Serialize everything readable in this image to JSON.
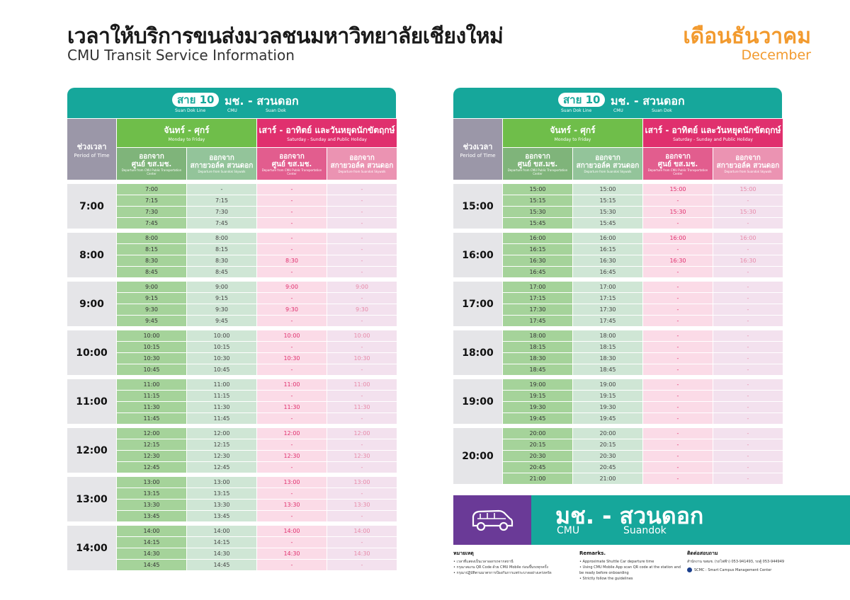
{
  "header": {
    "title": "เวลาให้บริการขนส่งมวลชนมหาวิทยาลัยเชียงใหม่",
    "subtitle": "CMU Transit Service Information",
    "month_th": "เดือนธันวาคม",
    "month_en": "December"
  },
  "route": {
    "line_label": "สาย 10",
    "line_sub": "Suan Dok Line",
    "name": "มช. - สวนดอก",
    "sub_cmu": "CMU",
    "sub_suandok": "Suan Dok"
  },
  "table_header": {
    "period_th": "ช่วงเวลา",
    "period_en": "Period of Time",
    "weekday_th": "จันทร์ - ศุกร์",
    "weekday_en": "Monday to Friday",
    "weekend_th": "เสาร์ - อาทิตย์ และวันหยุดนักขัตฤกษ์",
    "weekend_en": "Saturday - Sunday and Public Holiday",
    "dep_center_th1": "ออกจาก",
    "dep_center_th2": "ศูนย์ ขส.มช.",
    "dep_center_en": "Departure from CMU Public Transportation Center",
    "dep_skywalk_th1": "ออกจาก",
    "dep_skywalk_th2": "สกายวอล์ค สวนดอก",
    "dep_skywalk_en": "Departure from Suandok Skywalk"
  },
  "schedule_left": [
    {
      "hour": "7:00",
      "rows": [
        [
          "7:00",
          "-",
          "-",
          "-"
        ],
        [
          "7:15",
          "7:15",
          "-",
          "-"
        ],
        [
          "7:30",
          "7:30",
          "-",
          "-"
        ],
        [
          "7:45",
          "7:45",
          "-",
          "-"
        ]
      ]
    },
    {
      "hour": "8:00",
      "rows": [
        [
          "8:00",
          "8:00",
          "-",
          "-"
        ],
        [
          "8:15",
          "8:15",
          "-",
          "-"
        ],
        [
          "8:30",
          "8:30",
          "8:30",
          "-"
        ],
        [
          "8:45",
          "8:45",
          "-",
          "-"
        ]
      ]
    },
    {
      "hour": "9:00",
      "rows": [
        [
          "9:00",
          "9:00",
          "9:00",
          "9:00"
        ],
        [
          "9:15",
          "9:15",
          "-",
          "-"
        ],
        [
          "9:30",
          "9:30",
          "9:30",
          "9:30"
        ],
        [
          "9:45",
          "9:45",
          "-",
          "-"
        ]
      ]
    },
    {
      "hour": "10:00",
      "rows": [
        [
          "10:00",
          "10:00",
          "10:00",
          "10:00"
        ],
        [
          "10:15",
          "10:15",
          "-",
          "-"
        ],
        [
          "10:30",
          "10:30",
          "10:30",
          "10:30"
        ],
        [
          "10:45",
          "10:45",
          "-",
          "-"
        ]
      ]
    },
    {
      "hour": "11:00",
      "rows": [
        [
          "11:00",
          "11:00",
          "11:00",
          "11:00"
        ],
        [
          "11:15",
          "11:15",
          "-",
          "-"
        ],
        [
          "11:30",
          "11:30",
          "11:30",
          "11:30"
        ],
        [
          "11:45",
          "11:45",
          "-",
          "-"
        ]
      ]
    },
    {
      "hour": "12:00",
      "rows": [
        [
          "12:00",
          "12:00",
          "12:00",
          "12:00"
        ],
        [
          "12:15",
          "12:15",
          "-",
          "-"
        ],
        [
          "12:30",
          "12:30",
          "12:30",
          "12:30"
        ],
        [
          "12:45",
          "12:45",
          "-",
          "-"
        ]
      ]
    },
    {
      "hour": "13:00",
      "rows": [
        [
          "13:00",
          "13:00",
          "13:00",
          "13:00"
        ],
        [
          "13:15",
          "13:15",
          "-",
          "-"
        ],
        [
          "13:30",
          "13:30",
          "13:30",
          "13:30"
        ],
        [
          "13:45",
          "13:45",
          "-",
          "-"
        ]
      ]
    },
    {
      "hour": "14:00",
      "rows": [
        [
          "14:00",
          "14:00",
          "14:00",
          "14:00"
        ],
        [
          "14:15",
          "14:15",
          "-",
          "-"
        ],
        [
          "14:30",
          "14:30",
          "14:30",
          "14:30"
        ],
        [
          "14:45",
          "14:45",
          "-",
          "-"
        ]
      ]
    }
  ],
  "schedule_right": [
    {
      "hour": "15:00",
      "rows": [
        [
          "15:00",
          "15:00",
          "15:00",
          "15:00"
        ],
        [
          "15:15",
          "15:15",
          "-",
          "-"
        ],
        [
          "15:30",
          "15:30",
          "15:30",
          "15:30"
        ],
        [
          "15:45",
          "15:45",
          "-",
          "-"
        ]
      ]
    },
    {
      "hour": "16:00",
      "rows": [
        [
          "16:00",
          "16:00",
          "16:00",
          "16:00"
        ],
        [
          "16:15",
          "16:15",
          "-",
          "-"
        ],
        [
          "16:30",
          "16:30",
          "16:30",
          "16:30"
        ],
        [
          "16:45",
          "16:45",
          "-",
          "-"
        ]
      ]
    },
    {
      "hour": "17:00",
      "rows": [
        [
          "17:00",
          "17:00",
          "-",
          "-"
        ],
        [
          "17:15",
          "17:15",
          "-",
          "-"
        ],
        [
          "17:30",
          "17:30",
          "-",
          "-"
        ],
        [
          "17:45",
          "17:45",
          "-",
          "-"
        ]
      ]
    },
    {
      "hour": "18:00",
      "rows": [
        [
          "18:00",
          "18:00",
          "-",
          "-"
        ],
        [
          "18:15",
          "18:15",
          "-",
          "-"
        ],
        [
          "18:30",
          "18:30",
          "-",
          "-"
        ],
        [
          "18:45",
          "18:45",
          "-",
          "-"
        ]
      ]
    },
    {
      "hour": "19:00",
      "rows": [
        [
          "19:00",
          "19:00",
          "-",
          "-"
        ],
        [
          "19:15",
          "19:15",
          "-",
          "-"
        ],
        [
          "19:30",
          "19:30",
          "-",
          "-"
        ],
        [
          "19:45",
          "19:45",
          "-",
          "-"
        ]
      ]
    },
    {
      "hour": "20:00",
      "rows": [
        [
          "20:00",
          "20:00",
          "-",
          "-"
        ],
        [
          "20:15",
          "20:15",
          "-",
          "-"
        ],
        [
          "20:30",
          "20:30",
          "-",
          "-"
        ],
        [
          "20:45",
          "20:45",
          "-",
          "-"
        ],
        [
          "21:00",
          "21:00",
          "-",
          "-"
        ]
      ]
    }
  ],
  "banner": {
    "icon": "van-icon",
    "title_th": "มช. - สวนดอก",
    "cmu": "CMU",
    "suandok": "Suandok"
  },
  "notes_th": {
    "title": "หมายเหตุ",
    "items": [
      "เวลาที่แสดงเป็นเวลาออกรถจากสถานี",
      "กรุณาสแกน QR Code ด้วย CMU Mobile ก่อนขึ้นรถทุกครั้ง",
      "กรุณาปฏิบัติตามมาตรการป้องกันการแพร่ระบาดอย่างเคร่งครัด"
    ]
  },
  "notes_en": {
    "title": "Remarks.",
    "items": [
      "Approximate Shuttle Car departure time",
      "Using CMU Mobile App scan QR code at the station and be ready before onboarding",
      "Strictly follow the guidelines"
    ]
  },
  "contact": {
    "title": "ติดต่อสอบถาม",
    "phone": "สำนักงาน ขสมช. (รถไฟฟ้า) 053-941493, รถตู้ 053-944949",
    "fb": "SCMC : Smart Campus Management Center"
  },
  "colors": {
    "teal": "#16a79b",
    "green": "#6fbe4a",
    "magenta": "#e0306e",
    "orange": "#f29a2e",
    "purple": "#6a3a97"
  }
}
